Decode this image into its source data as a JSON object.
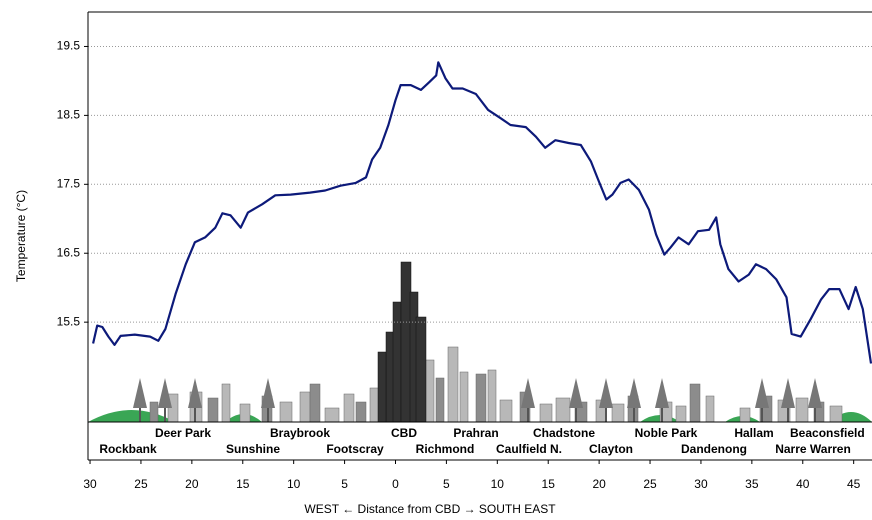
{
  "chart_data": {
    "type": "line",
    "y_label": "Temperature (°C)",
    "x_label": "WEST ← Distance from CBD → SOUTH EAST",
    "xlim": [
      -30.2,
      46.8
    ],
    "xticks": [
      {
        "value": -30,
        "label": "30"
      },
      {
        "value": -25,
        "label": "25"
      },
      {
        "value": -20,
        "label": "20"
      },
      {
        "value": -15,
        "label": "15"
      },
      {
        "value": -10,
        "label": "10"
      },
      {
        "value": -5,
        "label": "5"
      },
      0,
      5,
      10,
      15,
      20,
      25,
      30,
      35,
      40,
      45
    ],
    "ylim": [
      13.5,
      20.0
    ],
    "yticks": [
      15.5,
      16.5,
      17.5,
      18.5,
      19.5
    ],
    "grid": true,
    "locations_upper": [
      "Deer Park",
      "Braybrook",
      "CBD",
      "Prahran",
      "Chadstone",
      "Noble Park",
      "Hallam",
      "Beaconsfield"
    ],
    "locations_lower": [
      "Rockbank",
      "Sunshine",
      "Footscray",
      "Richmond",
      "Caulfield N.",
      "Clayton",
      "Dandenong",
      "Narre Warren"
    ],
    "series": [
      {
        "color": "#0d1a7a",
        "x": [
          -29.7,
          -29.3,
          -28.8,
          -28.2,
          -27.6,
          -27.0,
          -25.6,
          -24.1,
          -23.3,
          -22.6,
          -21.6,
          -20.6,
          -19.7,
          -18.7,
          -17.7,
          -17.0,
          -16.2,
          -15.2,
          -14.5,
          -13.1,
          -11.8,
          -10.3,
          -8.4,
          -6.9,
          -5.4,
          -3.9,
          -2.9,
          -2.3,
          -1.5,
          -0.7,
          0,
          0.5,
          1.5,
          2.5,
          3.3,
          4.0,
          4.2,
          4.9,
          5.6,
          6.6,
          7.9,
          9.1,
          10.3,
          11.3,
          12.8,
          13.8,
          14.7,
          15.7,
          17.0,
          18.2,
          19.2,
          19.9,
          20.7,
          21.3,
          22.1,
          22.9,
          23.9,
          24.9,
          25.6,
          26.4,
          27.0,
          27.8,
          28.8,
          29.7,
          30.8,
          31.5,
          31.9,
          32.7,
          33.7,
          34.7,
          35.4,
          36.4,
          37.4,
          38.4,
          38.9,
          39.8,
          40.8,
          41.8,
          42.6,
          43.6,
          44.5,
          45.2,
          45.9,
          46.7
        ],
        "values": [
          15.19,
          15.45,
          15.43,
          15.29,
          15.17,
          15.3,
          15.32,
          15.29,
          15.23,
          15.4,
          15.91,
          16.34,
          16.66,
          16.73,
          16.87,
          17.08,
          17.05,
          16.87,
          17.09,
          17.21,
          17.34,
          17.35,
          17.38,
          17.41,
          17.48,
          17.52,
          17.6,
          17.86,
          18.03,
          18.36,
          18.72,
          18.94,
          18.94,
          18.87,
          18.98,
          19.08,
          19.27,
          19.04,
          18.89,
          18.89,
          18.81,
          18.58,
          18.46,
          18.36,
          18.33,
          18.19,
          18.03,
          18.14,
          18.1,
          18.07,
          17.83,
          17.57,
          17.28,
          17.35,
          17.52,
          17.57,
          17.42,
          17.13,
          16.77,
          16.48,
          16.58,
          16.73,
          16.63,
          16.82,
          16.84,
          17.02,
          16.63,
          16.27,
          16.09,
          16.19,
          16.34,
          16.27,
          16.12,
          15.86,
          15.33,
          15.29,
          15.55,
          15.83,
          15.98,
          15.98,
          15.69,
          16.01,
          15.69,
          14.9
        ]
      }
    ]
  }
}
